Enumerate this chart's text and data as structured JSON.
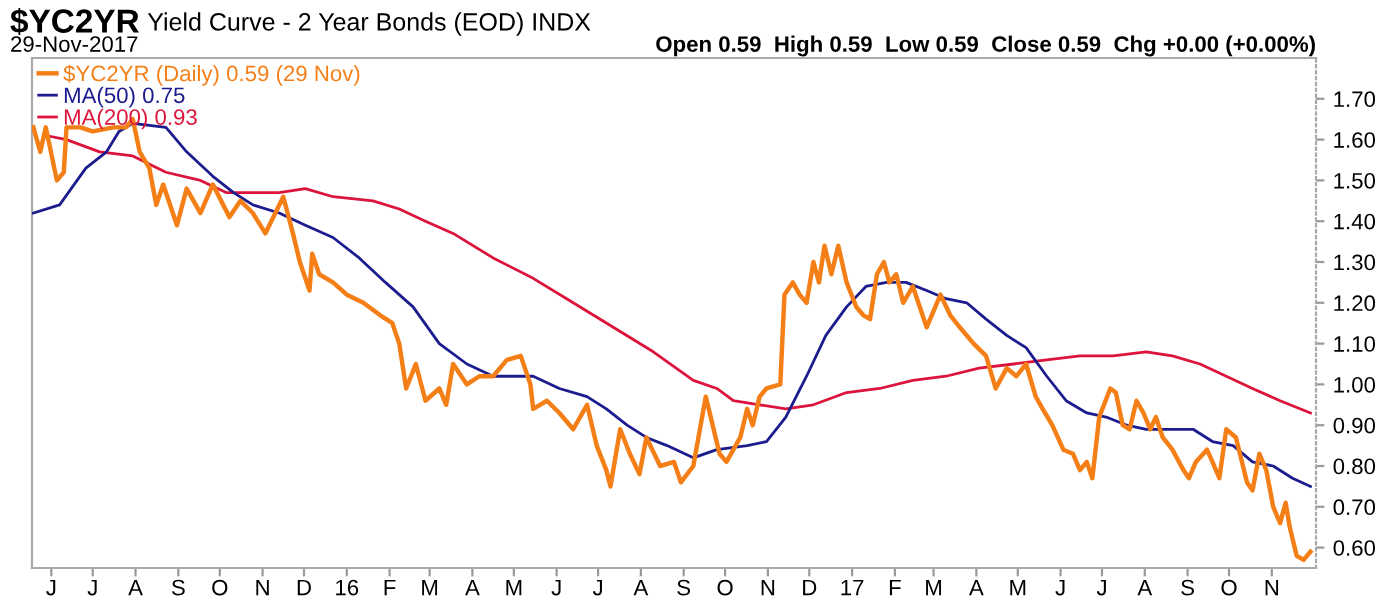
{
  "chart_data": {
    "type": "line",
    "title": "$YC2YR",
    "subtitle": "Yield Curve - 2 Year Bonds (EOD) INDX",
    "annotations": [
      "29-Nov-2017",
      "Open 0.59  High 0.59  Low 0.59  Close 0.59  Chg +0.00 (+0.00%)"
    ],
    "xlim": [
      "2015-05-18",
      "2017-12-03"
    ],
    "xticks": [
      {
        "value": "2015-06-01",
        "label": "J"
      },
      {
        "value": "2015-07-01",
        "label": "J"
      },
      {
        "value": "2015-08-01",
        "label": "A"
      },
      {
        "value": "2015-09-01",
        "label": "S"
      },
      {
        "value": "2015-10-01",
        "label": "O"
      },
      {
        "value": "2015-11-01",
        "label": "N"
      },
      {
        "value": "2015-12-01",
        "label": "D"
      },
      {
        "value": "2016-01-01",
        "label": "16"
      },
      {
        "value": "2016-02-01",
        "label": "F"
      },
      {
        "value": "2016-03-01",
        "label": "M"
      },
      {
        "value": "2016-04-01",
        "label": "A"
      },
      {
        "value": "2016-05-01",
        "label": "M"
      },
      {
        "value": "2016-06-01",
        "label": "J"
      },
      {
        "value": "2016-07-01",
        "label": "J"
      },
      {
        "value": "2016-08-01",
        "label": "A"
      },
      {
        "value": "2016-09-01",
        "label": "S"
      },
      {
        "value": "2016-10-01",
        "label": "O"
      },
      {
        "value": "2016-11-01",
        "label": "N"
      },
      {
        "value": "2016-12-01",
        "label": "D"
      },
      {
        "value": "2017-01-01",
        "label": "17"
      },
      {
        "value": "2017-02-01",
        "label": "F"
      },
      {
        "value": "2017-03-01",
        "label": "M"
      },
      {
        "value": "2017-04-01",
        "label": "A"
      },
      {
        "value": "2017-05-01",
        "label": "M"
      },
      {
        "value": "2017-06-01",
        "label": "J"
      },
      {
        "value": "2017-07-01",
        "label": "J"
      },
      {
        "value": "2017-08-01",
        "label": "A"
      },
      {
        "value": "2017-09-01",
        "label": "S"
      },
      {
        "value": "2017-10-01",
        "label": "O"
      },
      {
        "value": "2017-11-01",
        "label": "N"
      }
    ],
    "ylim": [
      0.55,
      1.8
    ],
    "yticks": [
      {
        "value": 0.6,
        "label": "0.60"
      },
      {
        "value": 0.7,
        "label": "0.70"
      },
      {
        "value": 0.8,
        "label": "0.80"
      },
      {
        "value": 0.9,
        "label": "0.90"
      },
      {
        "value": 1.0,
        "label": "1.00"
      },
      {
        "value": 1.1,
        "label": "1.10"
      },
      {
        "value": 1.2,
        "label": "1.20"
      },
      {
        "value": 1.3,
        "label": "1.30"
      },
      {
        "value": 1.4,
        "label": "1.40"
      },
      {
        "value": 1.5,
        "label": "1.50"
      },
      {
        "value": 1.6,
        "label": "1.60"
      },
      {
        "value": 1.7,
        "label": "1.70"
      }
    ],
    "grid": false,
    "legend": "top left",
    "series": [
      {
        "name": "$YC2YR (Daily) 0.59 (29 Nov)",
        "color": "#f57f17",
        "x": [
          "2015-05-19",
          "2015-05-24",
          "2015-05-28",
          "2015-06-05",
          "2015-06-10",
          "2015-06-12",
          "2015-06-22",
          "2015-07-01",
          "2015-07-16",
          "2015-07-25",
          "2015-07-30",
          "2015-08-04",
          "2015-08-11",
          "2015-08-16",
          "2015-08-21",
          "2015-08-31",
          "2015-09-07",
          "2015-09-17",
          "2015-09-26",
          "2015-10-08",
          "2015-10-16",
          "2015-10-25",
          "2015-11-03",
          "2015-11-16",
          "2015-11-23",
          "2015-11-28",
          "2015-12-05",
          "2015-12-07",
          "2015-12-12",
          "2015-12-22",
          "2016-01-01",
          "2016-01-13",
          "2016-01-25",
          "2016-02-03",
          "2016-02-08",
          "2016-02-13",
          "2016-02-20",
          "2016-02-27",
          "2016-03-08",
          "2016-03-13",
          "2016-03-18",
          "2016-03-28",
          "2016-04-06",
          "2016-04-16",
          "2016-04-26",
          "2016-05-06",
          "2016-05-13",
          "2016-05-15",
          "2016-05-25",
          "2016-06-03",
          "2016-06-13",
          "2016-06-23",
          "2016-06-30",
          "2016-07-07",
          "2016-07-10",
          "2016-07-17",
          "2016-07-24",
          "2016-07-31",
          "2016-08-05",
          "2016-08-15",
          "2016-08-25",
          "2016-08-30",
          "2016-09-08",
          "2016-09-17",
          "2016-09-27",
          "2016-10-02",
          "2016-10-12",
          "2016-10-17",
          "2016-10-21",
          "2016-10-26",
          "2016-10-31",
          "2016-11-10",
          "2016-11-13",
          "2016-11-19",
          "2016-11-24",
          "2016-11-29",
          "2016-12-04",
          "2016-12-08",
          "2016-12-12",
          "2016-12-17",
          "2016-12-22",
          "2016-12-28",
          "2017-01-04",
          "2017-01-09",
          "2017-01-14",
          "2017-01-19",
          "2017-01-24",
          "2017-01-28",
          "2017-02-02",
          "2017-02-07",
          "2017-02-14",
          "2017-02-24",
          "2017-03-06",
          "2017-03-13",
          "2017-03-20",
          "2017-03-30",
          "2017-04-08",
          "2017-04-15",
          "2017-04-23",
          "2017-04-30",
          "2017-05-07",
          "2017-05-14",
          "2017-05-19",
          "2017-05-26",
          "2017-06-03",
          "2017-06-10",
          "2017-06-15",
          "2017-06-20",
          "2017-06-24",
          "2017-06-29",
          "2017-07-07",
          "2017-07-11",
          "2017-07-16",
          "2017-07-21",
          "2017-07-26",
          "2017-07-31",
          "2017-08-05",
          "2017-08-09",
          "2017-08-14",
          "2017-08-21",
          "2017-08-29",
          "2017-09-02",
          "2017-09-07",
          "2017-09-15",
          "2017-09-19",
          "2017-09-24",
          "2017-09-29",
          "2017-10-06",
          "2017-10-14",
          "2017-10-18",
          "2017-10-23",
          "2017-10-28",
          "2017-11-02",
          "2017-11-07",
          "2017-11-11",
          "2017-11-14",
          "2017-11-19",
          "2017-11-24",
          "2017-11-29"
        ],
        "values": [
          1.63,
          1.57,
          1.63,
          1.5,
          1.52,
          1.63,
          1.63,
          1.62,
          1.63,
          1.63,
          1.65,
          1.57,
          1.53,
          1.44,
          1.49,
          1.39,
          1.48,
          1.42,
          1.49,
          1.41,
          1.45,
          1.42,
          1.37,
          1.46,
          1.37,
          1.3,
          1.23,
          1.32,
          1.27,
          1.25,
          1.22,
          1.2,
          1.17,
          1.15,
          1.1,
          0.99,
          1.05,
          0.96,
          0.99,
          0.95,
          1.05,
          1.0,
          1.02,
          1.02,
          1.06,
          1.07,
          1.0,
          0.94,
          0.96,
          0.93,
          0.89,
          0.95,
          0.85,
          0.79,
          0.75,
          0.89,
          0.83,
          0.78,
          0.87,
          0.8,
          0.81,
          0.76,
          0.8,
          0.97,
          0.83,
          0.81,
          0.87,
          0.94,
          0.9,
          0.97,
          0.99,
          1.0,
          1.22,
          1.25,
          1.22,
          1.2,
          1.3,
          1.25,
          1.34,
          1.27,
          1.34,
          1.25,
          1.19,
          1.17,
          1.16,
          1.27,
          1.3,
          1.25,
          1.27,
          1.2,
          1.24,
          1.14,
          1.22,
          1.17,
          1.14,
          1.1,
          1.07,
          0.99,
          1.04,
          1.02,
          1.05,
          0.97,
          0.94,
          0.9,
          0.84,
          0.83,
          0.79,
          0.81,
          0.77,
          0.92,
          0.99,
          0.98,
          0.9,
          0.89,
          0.96,
          0.93,
          0.89,
          0.92,
          0.87,
          0.84,
          0.79,
          0.77,
          0.81,
          0.84,
          0.81,
          0.77,
          0.89,
          0.87,
          0.76,
          0.74,
          0.83,
          0.79,
          0.7,
          0.66,
          0.71,
          0.65,
          0.58,
          0.57,
          0.59
        ]
      },
      {
        "name": "MA(50) 0.75",
        "color": "#1c1c8f",
        "x": [
          "2015-05-19",
          "2015-06-07",
          "2015-06-26",
          "2015-07-11",
          "2015-07-20",
          "2015-07-30",
          "2015-08-23",
          "2015-09-07",
          "2015-09-26",
          "2015-10-11",
          "2015-10-25",
          "2015-11-13",
          "2015-12-02",
          "2015-12-22",
          "2016-01-10",
          "2016-01-29",
          "2016-02-18",
          "2016-03-08",
          "2016-03-28",
          "2016-04-16",
          "2016-05-06",
          "2016-05-15",
          "2016-06-03",
          "2016-06-23",
          "2016-07-07",
          "2016-07-22",
          "2016-08-05",
          "2016-08-20",
          "2016-09-08",
          "2016-09-25",
          "2016-10-17",
          "2016-10-31",
          "2016-11-14",
          "2016-11-29",
          "2016-12-13",
          "2016-12-28",
          "2017-01-11",
          "2017-01-26",
          "2017-02-09",
          "2017-02-24",
          "2017-03-10",
          "2017-03-25",
          "2017-04-08",
          "2017-04-23",
          "2017-05-07",
          "2017-05-22",
          "2017-06-05",
          "2017-06-20",
          "2017-07-04",
          "2017-07-19",
          "2017-08-02",
          "2017-08-21",
          "2017-09-05",
          "2017-09-19",
          "2017-10-04",
          "2017-10-18",
          "2017-11-02",
          "2017-11-16",
          "2017-11-29"
        ],
        "values": [
          1.42,
          1.44,
          1.53,
          1.57,
          1.62,
          1.64,
          1.63,
          1.57,
          1.51,
          1.47,
          1.44,
          1.42,
          1.39,
          1.36,
          1.31,
          1.25,
          1.19,
          1.1,
          1.05,
          1.02,
          1.02,
          1.02,
          0.99,
          0.97,
          0.94,
          0.9,
          0.87,
          0.85,
          0.82,
          0.84,
          0.85,
          0.86,
          0.92,
          1.02,
          1.12,
          1.19,
          1.24,
          1.25,
          1.25,
          1.23,
          1.21,
          1.2,
          1.16,
          1.12,
          1.09,
          1.02,
          0.96,
          0.93,
          0.92,
          0.9,
          0.89,
          0.89,
          0.89,
          0.86,
          0.85,
          0.81,
          0.8,
          0.77,
          0.75
        ]
      },
      {
        "name": "MA(200) 0.93",
        "color": "#dc143c",
        "x": [
          "2015-05-28",
          "2015-06-12",
          "2015-07-06",
          "2015-07-30",
          "2015-08-23",
          "2015-09-17",
          "2015-10-06",
          "2015-10-20",
          "2015-11-13",
          "2015-12-02",
          "2015-12-22",
          "2016-01-20",
          "2016-02-08",
          "2016-02-27",
          "2016-03-18",
          "2016-04-16",
          "2016-05-15",
          "2016-06-13",
          "2016-07-12",
          "2016-08-10",
          "2016-09-08",
          "2016-09-25",
          "2016-10-07",
          "2016-10-26",
          "2016-11-14",
          "2016-12-04",
          "2016-12-28",
          "2017-01-21",
          "2017-02-14",
          "2017-03-10",
          "2017-04-03",
          "2017-04-28",
          "2017-05-22",
          "2017-06-15",
          "2017-07-09",
          "2017-08-02",
          "2017-08-21",
          "2017-09-10",
          "2017-09-29",
          "2017-10-18",
          "2017-11-07",
          "2017-11-29"
        ],
        "values": [
          1.61,
          1.6,
          1.57,
          1.56,
          1.52,
          1.5,
          1.47,
          1.47,
          1.47,
          1.48,
          1.46,
          1.45,
          1.43,
          1.4,
          1.37,
          1.31,
          1.26,
          1.2,
          1.14,
          1.08,
          1.01,
          0.99,
          0.96,
          0.95,
          0.94,
          0.95,
          0.98,
          0.99,
          1.01,
          1.02,
          1.04,
          1.05,
          1.06,
          1.07,
          1.07,
          1.08,
          1.07,
          1.05,
          1.02,
          0.99,
          0.96,
          0.93
        ]
      }
    ]
  }
}
